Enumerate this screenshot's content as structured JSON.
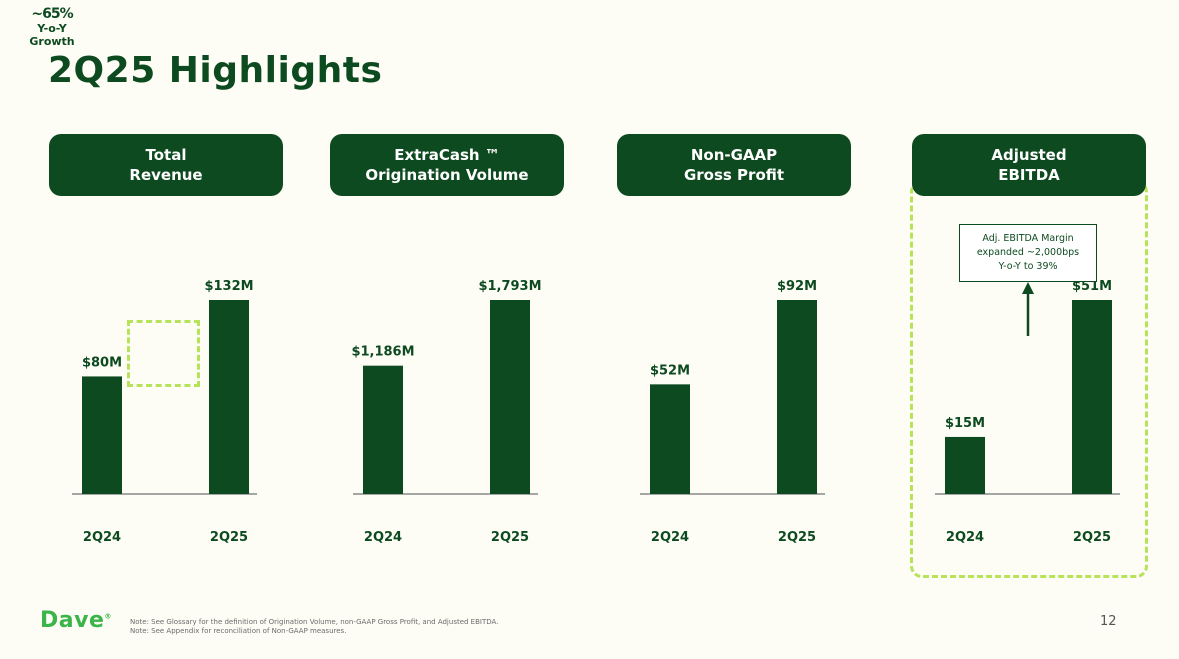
{
  "growth_tag": {
    "percent": "~65%",
    "line1": "Y-o-Y",
    "line2": "Growth"
  },
  "title": "2Q25 Highlights",
  "chart_data": [
    {
      "type": "bar",
      "title": "Total Revenue",
      "title_lines": [
        "Total",
        "Revenue"
      ],
      "categories": [
        "2Q24",
        "2Q25"
      ],
      "values": [
        80,
        132
      ],
      "labels": [
        "$80M",
        "$132M"
      ],
      "ylabel": "$M"
    },
    {
      "type": "bar",
      "title": "ExtraCash ™ Origination Volume",
      "title_lines": [
        "ExtraCash ™",
        "Origination Volume"
      ],
      "categories": [
        "2Q24",
        "2Q25"
      ],
      "values": [
        1186,
        1793
      ],
      "labels": [
        "$1,186M",
        "$1,793M"
      ],
      "ylabel": "$M"
    },
    {
      "type": "bar",
      "title": "Non-GAAP Gross Profit",
      "title_lines": [
        "Non-GAAP",
        "Gross Profit"
      ],
      "categories": [
        "2Q24",
        "2Q25"
      ],
      "values": [
        52,
        92
      ],
      "labels": [
        "$52M",
        "$92M"
      ],
      "ylabel": "$M"
    },
    {
      "type": "bar",
      "title": "Adjusted EBITDA",
      "title_lines": [
        "Adjusted",
        "EBITDA"
      ],
      "categories": [
        "2Q24",
        "2Q25"
      ],
      "values": [
        15,
        51
      ],
      "labels": [
        "$15M",
        "$51M"
      ],
      "ylabel": "$M"
    }
  ],
  "callout": {
    "line1": "Adj. EBITDA Margin",
    "line2": "expanded ~2,000bps",
    "line3": "Y-o-Y to 39%"
  },
  "footer": {
    "logo": "Dave",
    "note1": "Note:   See Glossary for the definition of Origination Volume, non-GAAP Gross Profit, and Adjusted EBITDA.",
    "note2": "Note:   See Appendix for reconciliation of Non-GAAP measures.",
    "page": "12"
  },
  "colors": {
    "bar": "#0d4a1f",
    "accent": "#b6e35a",
    "logo": "#3bb54a"
  }
}
